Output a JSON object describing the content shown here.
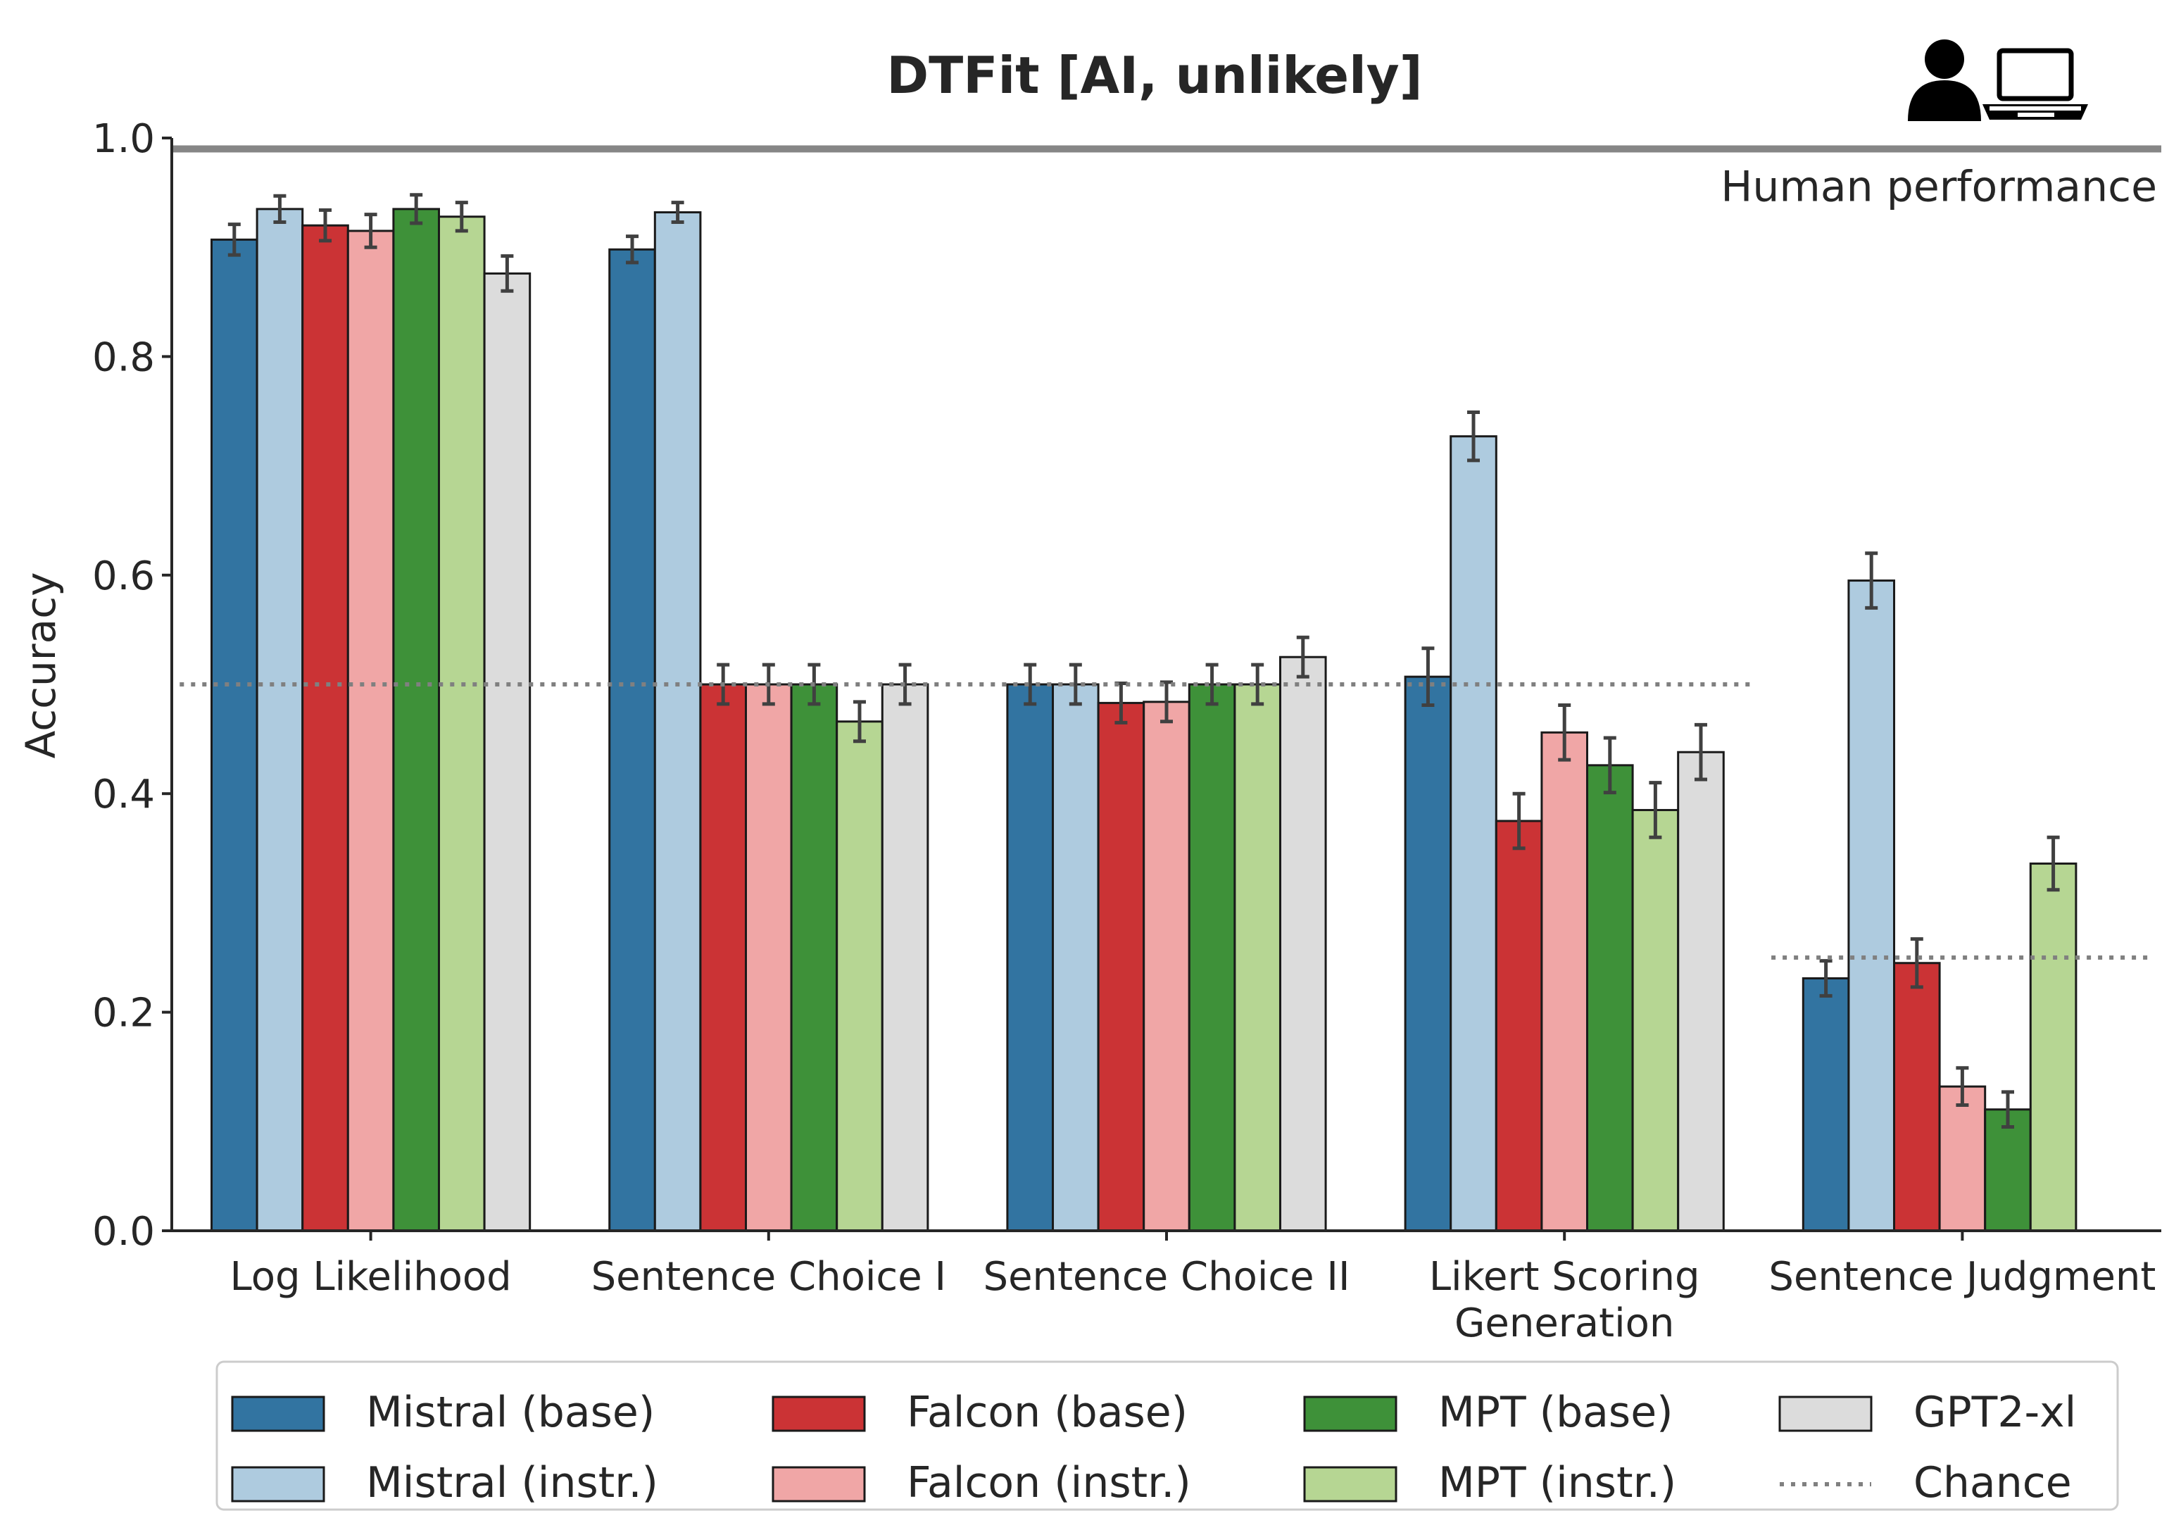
{
  "chart_data": {
    "type": "bar",
    "title": "DTFit [AI, unlikely]",
    "xlabel": "",
    "ylabel": "Accuracy",
    "ylim": [
      0,
      1.0
    ],
    "yticks": [
      "0.0",
      "0.2",
      "0.4",
      "0.6",
      "0.8",
      "1.0"
    ],
    "ytick_values": [
      0.0,
      0.2,
      0.4,
      0.6,
      0.8,
      1.0
    ],
    "categories": [
      [
        "Log Likelihood"
      ],
      [
        "Sentence Choice I"
      ],
      [
        "Sentence Choice II"
      ],
      [
        "Likert Scoring",
        "Generation"
      ],
      [
        "Sentence Judgment"
      ]
    ],
    "series": [
      {
        "name": "Mistral (base)",
        "color": "#3274a1",
        "values": [
          0.907,
          0.898,
          0.5,
          0.507,
          0.231
        ],
        "errors": [
          0.014,
          0.012,
          0.018,
          0.026,
          0.016
        ]
      },
      {
        "name": "Mistral (instr.)",
        "color": "#aecbdf",
        "values": [
          0.935,
          0.932,
          0.5,
          0.727,
          0.595
        ],
        "errors": [
          0.012,
          0.009,
          0.018,
          0.022,
          0.025
        ]
      },
      {
        "name": "Falcon (base)",
        "color": "#cb3335",
        "values": [
          0.92,
          0.5,
          0.483,
          0.375,
          0.245
        ],
        "errors": [
          0.014,
          0.018,
          0.018,
          0.025,
          0.022
        ]
      },
      {
        "name": "Falcon (instr.)",
        "color": "#f0a6a6",
        "values": [
          0.915,
          0.5,
          0.484,
          0.456,
          0.132
        ],
        "errors": [
          0.015,
          0.018,
          0.018,
          0.025,
          0.017
        ]
      },
      {
        "name": "MPT (base)",
        "color": "#3e9139",
        "values": [
          0.935,
          0.5,
          0.5,
          0.426,
          0.111
        ],
        "errors": [
          0.013,
          0.018,
          0.018,
          0.025,
          0.016
        ]
      },
      {
        "name": "MPT (instr.)",
        "color": "#b6d693",
        "values": [
          0.928,
          0.466,
          0.5,
          0.385,
          0.336
        ],
        "errors": [
          0.013,
          0.018,
          0.018,
          0.025,
          0.024
        ]
      },
      {
        "name": "GPT2-xl",
        "color": "#dcdcdc",
        "values": [
          0.876,
          0.5,
          0.525,
          0.438,
          0.0
        ],
        "errors": [
          0.016,
          0.018,
          0.018,
          0.025,
          0.0
        ]
      }
    ],
    "chance_levels": [
      0.5,
      0.5,
      0.5,
      0.5,
      0.25
    ],
    "chance_label": "Chance",
    "human_performance": {
      "value": 0.99,
      "label": "Human performance"
    },
    "grid": false,
    "legend_placement": "bottom",
    "colors": {
      "axis": "#262626",
      "error_bar": "#404040",
      "chance_line": "#808080",
      "human_line": "#7a7a7a",
      "bar_edge": "#1a1a1a"
    },
    "icon": "person-and-laptop-icon"
  }
}
